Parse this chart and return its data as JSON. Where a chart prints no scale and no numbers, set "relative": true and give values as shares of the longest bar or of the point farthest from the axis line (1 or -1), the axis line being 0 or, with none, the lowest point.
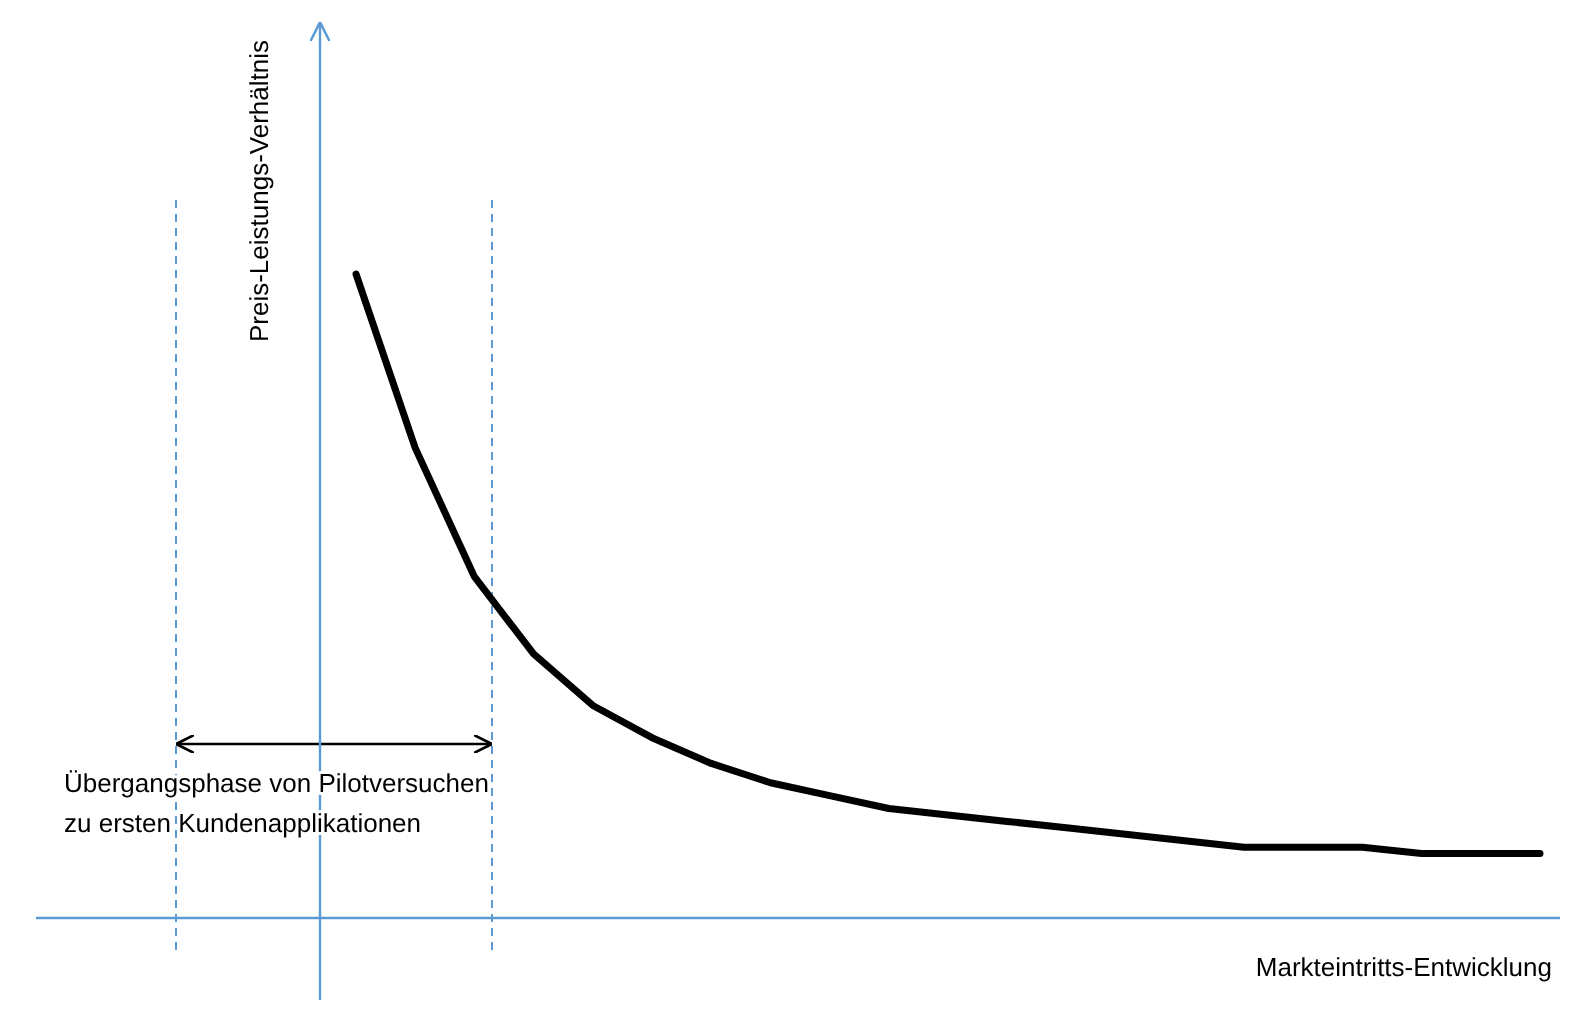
{
  "chart_data": {
    "type": "line",
    "relative": true,
    "xlabel": "Markteintritts-Entwicklung",
    "ylabel": "Preis-Leistungs-Verhältnis",
    "categories": [
      null,
      null,
      null,
      null,
      null,
      null,
      null,
      null,
      null,
      null,
      null,
      null,
      null,
      null,
      null,
      null,
      null,
      null,
      null,
      null,
      null,
      null,
      null,
      null,
      null,
      null
    ],
    "line_style": "solid",
    "series": [
      {
        "color": "#000000",
        "values": [
          null,
          null,
          null,
          null,
          null,
          1,
          0.73,
          0.53,
          0.41,
          0.33,
          0.28,
          0.24,
          0.21,
          0.19,
          0.17,
          0.16,
          0.15,
          0.14,
          0.13,
          0.12,
          0.11,
          0.11,
          0.11,
          0.1,
          0.1,
          0.1
        ]
      }
    ],
    "annotations": [
      "Übergangsphase von Pilotversuchen zu ersten Kundenapplikationen"
    ]
  }
}
